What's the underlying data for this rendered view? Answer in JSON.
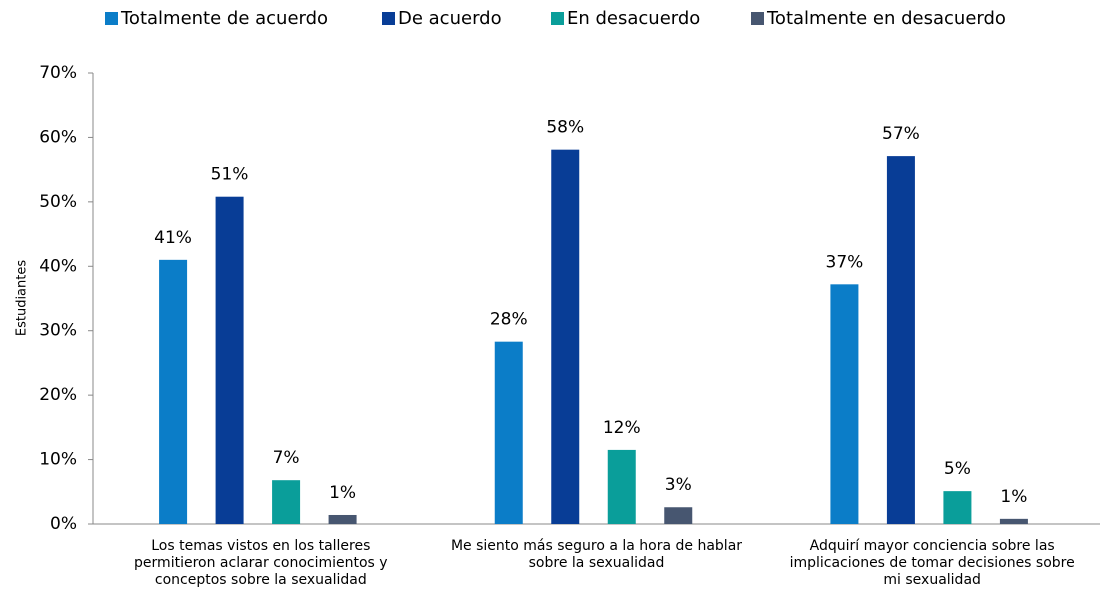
{
  "chart_data": {
    "type": "bar",
    "categories": [
      "Los temas vistos en los talleres\npermitieron  aclarar conocimientos y\nconceptos sobre la sexualidad",
      "Me siento más seguro a la hora de hablar\nsobre la sexualidad",
      "Adquirí mayor conciencia sobre las\nimplicaciones de tomar decisiones sobre\nmi sexualidad"
    ],
    "series": [
      {
        "name": "Totalmente de acuerdo",
        "color": "#0b7dc8",
        "values": [
          41,
          28.3,
          37.2
        ],
        "value_labels": [
          "41%",
          "28%",
          "37%"
        ]
      },
      {
        "name": "De acuerdo",
        "color": "#083d96",
        "values": [
          50.8,
          58.1,
          57.1
        ],
        "value_labels": [
          "51%",
          "58%",
          "57%"
        ]
      },
      {
        "name": "En desacuerdo",
        "color": "#0a9e9a",
        "values": [
          6.8,
          11.5,
          5.1
        ],
        "value_labels": [
          "7%",
          "12%",
          "5%"
        ]
      },
      {
        "name": "Totalmente en desacuerdo",
        "color": "#475670",
        "values": [
          1.4,
          2.6,
          0.8
        ],
        "value_labels": [
          "1%",
          "3%",
          "1%"
        ]
      }
    ],
    "ylabel": "Estudiantes",
    "ylim": [
      0,
      70
    ],
    "yticks": [
      {
        "value": 0,
        "label": "0%"
      },
      {
        "value": 10,
        "label": "10%"
      },
      {
        "value": 20,
        "label": "20%"
      },
      {
        "value": 30,
        "label": "30%"
      },
      {
        "value": 40,
        "label": "40%"
      },
      {
        "value": 50,
        "label": "50%"
      },
      {
        "value": 60,
        "label": "60%"
      },
      {
        "value": 70,
        "label": "70%"
      }
    ],
    "legend": "top"
  }
}
